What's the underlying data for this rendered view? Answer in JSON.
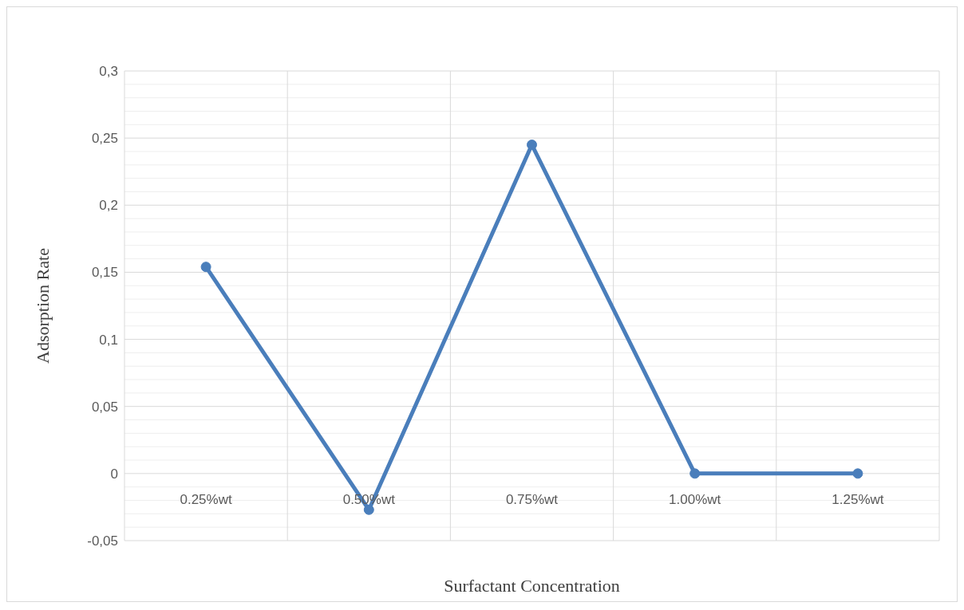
{
  "chart_data": {
    "type": "line",
    "xlabel": "Surfactant Concentration",
    "ylabel": "Adsorption Rate",
    "categories": [
      "0.25%wt",
      "0.50%wt",
      "0.75%wt",
      "1.00%wt",
      "1.25%wt"
    ],
    "series": [
      {
        "color": "#4a7ebb",
        "values": [
          0.154,
          -0.027,
          0.245,
          0,
          0
        ]
      }
    ],
    "ylim": [
      -0.05,
      0.3
    ],
    "yticks": [
      {
        "value": -0.05,
        "label": "-0,05"
      },
      {
        "value": 0,
        "label": "0"
      },
      {
        "value": 0.05,
        "label": "0,05"
      },
      {
        "value": 0.1,
        "label": "0,1"
      },
      {
        "value": 0.15,
        "label": "0,15"
      },
      {
        "value": 0.2,
        "label": "0,2"
      },
      {
        "value": 0.25,
        "label": "0,25"
      },
      {
        "value": 0.3,
        "label": "0,3"
      }
    ],
    "grid": true,
    "marker": "circle",
    "line_style": "solid"
  }
}
